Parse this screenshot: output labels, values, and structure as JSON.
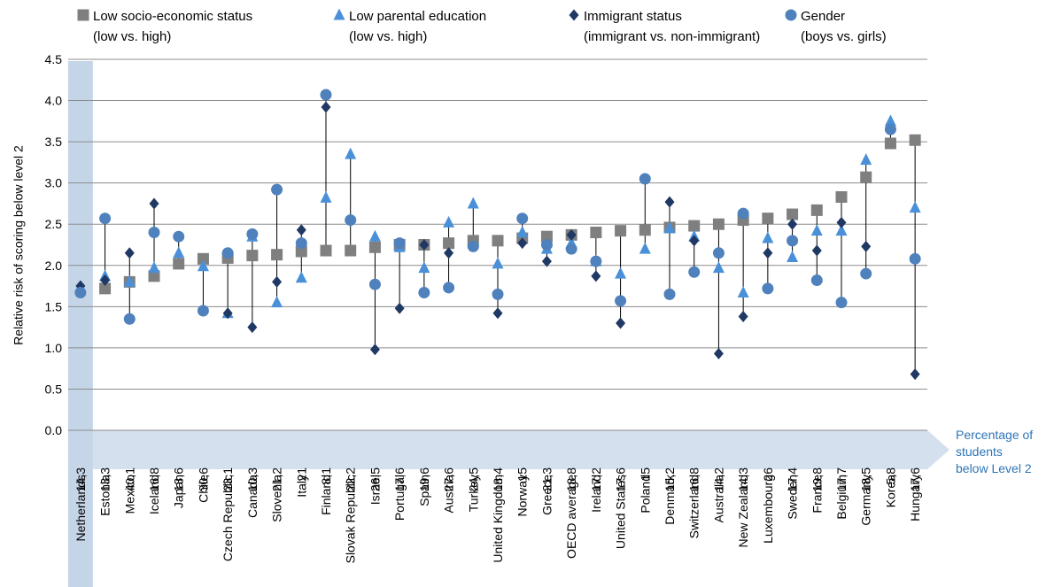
{
  "chart_data": {
    "type": "scatter",
    "ylabel": "Relative risk of scoring below level 2",
    "ylim": [
      0,
      4.5
    ],
    "yticks": [
      "0.0",
      "0.5",
      "1.0",
      "1.5",
      "2.0",
      "2.5",
      "3.0",
      "3.5",
      "4.0",
      "4.5"
    ],
    "grid": true,
    "legend_position": "top",
    "side_label": [
      "Percentage of",
      "students",
      "below Level 2"
    ],
    "highlighted_category": "Netherlands",
    "colors": {
      "ses": "#7f7f7f",
      "parental": "#4a90d9",
      "immigrant": "#203864",
      "gender": "#4f81bd",
      "highlight": "#c5d5e8",
      "band": "#c5d5e8",
      "band_text": "#2e75b6",
      "grid": "#8c8c8c",
      "line": "#000000"
    },
    "categories": [
      "Netherlands",
      "Estonia",
      "Mexico",
      "Iceland",
      "Japan",
      "Chile",
      "Czech Republic",
      "Canada",
      "Slovenia",
      "Italy",
      "Finland",
      "Slovak Republic",
      "Israel",
      "Portugal",
      "Spain",
      "Austria",
      "Turkey",
      "United Kingdom",
      "Norway",
      "Greece",
      "OECD average",
      "Ireland",
      "United States",
      "Poland",
      "Denmark",
      "Switzerland",
      "Australia",
      "New Zealand",
      "Luxembourg",
      "Sweden",
      "France",
      "Belgium",
      "Germany",
      "Korea",
      "Hungary"
    ],
    "percent_below_level2": [
      "14,3",
      "13,3",
      "40,1",
      "16,8",
      "13,6",
      "30,6",
      "23,1",
      "10,3",
      "21,2",
      "21",
      "8,1",
      "22,2",
      "26,5",
      "17,6",
      "19,6",
      "27,6",
      "24,5",
      "18,4",
      "15",
      "21,3",
      "18,8",
      "17,2",
      "17,6",
      "15",
      "15,2",
      "16,8",
      "14,2",
      "14,3",
      "26",
      "17,4",
      "19,8",
      "17,7",
      "18,5",
      "5,8",
      "17,6"
    ],
    "series": [
      {
        "name": "Low socio-economic status",
        "name_detail": "(low vs. high)",
        "marker": "square",
        "values": [
          null,
          1.72,
          1.8,
          1.87,
          2.02,
          2.08,
          2.09,
          2.12,
          2.13,
          2.17,
          2.18,
          2.18,
          2.22,
          2.25,
          2.25,
          2.27,
          2.3,
          2.3,
          2.33,
          2.35,
          2.37,
          2.4,
          2.42,
          2.43,
          2.46,
          2.48,
          2.5,
          2.55,
          2.57,
          2.62,
          2.67,
          2.83,
          3.07,
          3.48,
          3.52
        ]
      },
      {
        "name": "Low parental education",
        "name_detail": "(low vs. high)",
        "marker": "triangle",
        "values": [
          null,
          1.87,
          1.8,
          1.97,
          2.15,
          1.99,
          1.42,
          2.35,
          1.55,
          1.85,
          2.82,
          3.35,
          2.35,
          2.22,
          1.97,
          2.52,
          2.75,
          2.02,
          2.4,
          2.2,
          2.27,
          2.05,
          1.9,
          2.2,
          2.45,
          2.35,
          1.97,
          1.67,
          2.33,
          2.1,
          2.42,
          2.42,
          3.28,
          3.75,
          2.7
        ]
      },
      {
        "name": "Immigrant status",
        "name_detail": "(immigrant vs. non-immigrant)",
        "marker": "diamond",
        "values": [
          1.75,
          1.82,
          2.15,
          2.75,
          null,
          null,
          1.42,
          1.25,
          1.8,
          2.43,
          3.92,
          null,
          0.98,
          1.48,
          2.25,
          2.15,
          null,
          1.42,
          2.27,
          2.05,
          2.37,
          1.87,
          1.3,
          null,
          2.77,
          2.3,
          0.93,
          1.38,
          2.15,
          2.5,
          2.18,
          2.52,
          2.23,
          null,
          0.68
        ]
      },
      {
        "name": "Gender",
        "name_detail": "(boys vs. girls)",
        "marker": "circle",
        "values": [
          1.67,
          2.57,
          1.35,
          2.4,
          2.35,
          1.45,
          2.15,
          2.38,
          2.92,
          2.27,
          4.07,
          2.55,
          1.77,
          2.27,
          1.67,
          1.73,
          2.23,
          1.65,
          2.57,
          2.25,
          2.2,
          2.05,
          1.57,
          3.05,
          1.65,
          1.92,
          2.15,
          2.63,
          1.72,
          2.3,
          1.82,
          1.55,
          1.9,
          3.65,
          2.08
        ]
      }
    ]
  }
}
